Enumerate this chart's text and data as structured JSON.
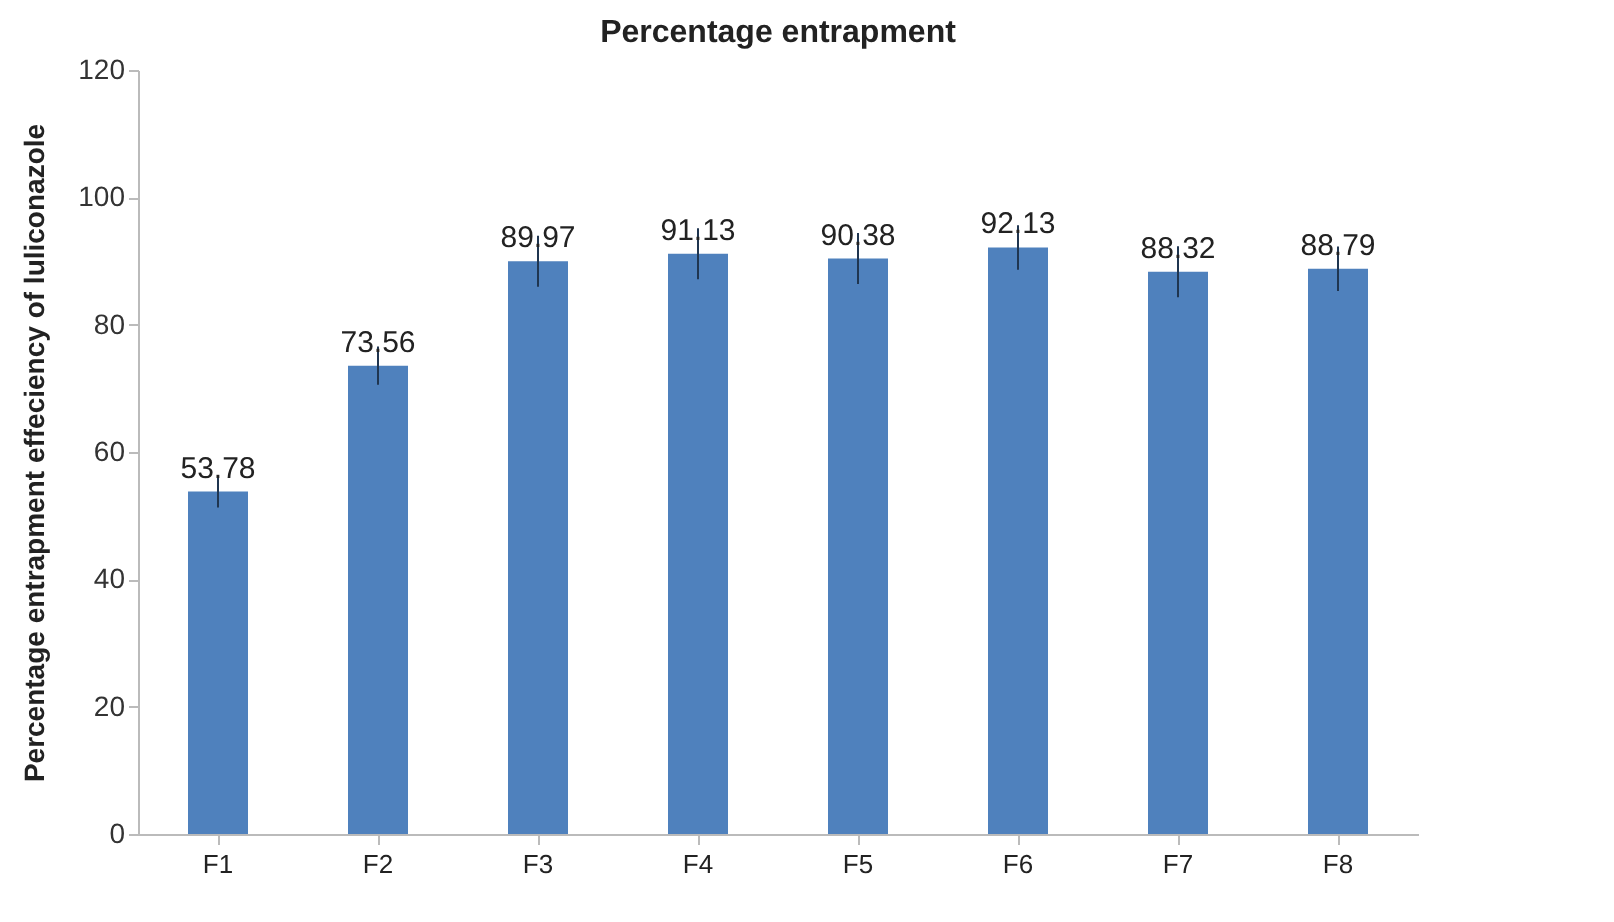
{
  "chart_data": {
    "type": "bar",
    "title": "Percentage entrapment",
    "ylabel": "Percentage entrapment effeciency of luliconazole",
    "categories": [
      "F1",
      "F2",
      "F3",
      "F4",
      "F5",
      "F6",
      "F7",
      "F8"
    ],
    "values": [
      53.78,
      73.56,
      89.97,
      91.13,
      90.38,
      92.13,
      88.32,
      88.79
    ],
    "errors": [
      2.5,
      3,
      4,
      4,
      4,
      3.5,
      4,
      3.5
    ],
    "color": "#4f81bd",
    "ylim": [
      0,
      120
    ],
    "yticks": [
      0,
      20,
      40,
      60,
      80,
      100,
      120
    ],
    "data_labels": true
  }
}
